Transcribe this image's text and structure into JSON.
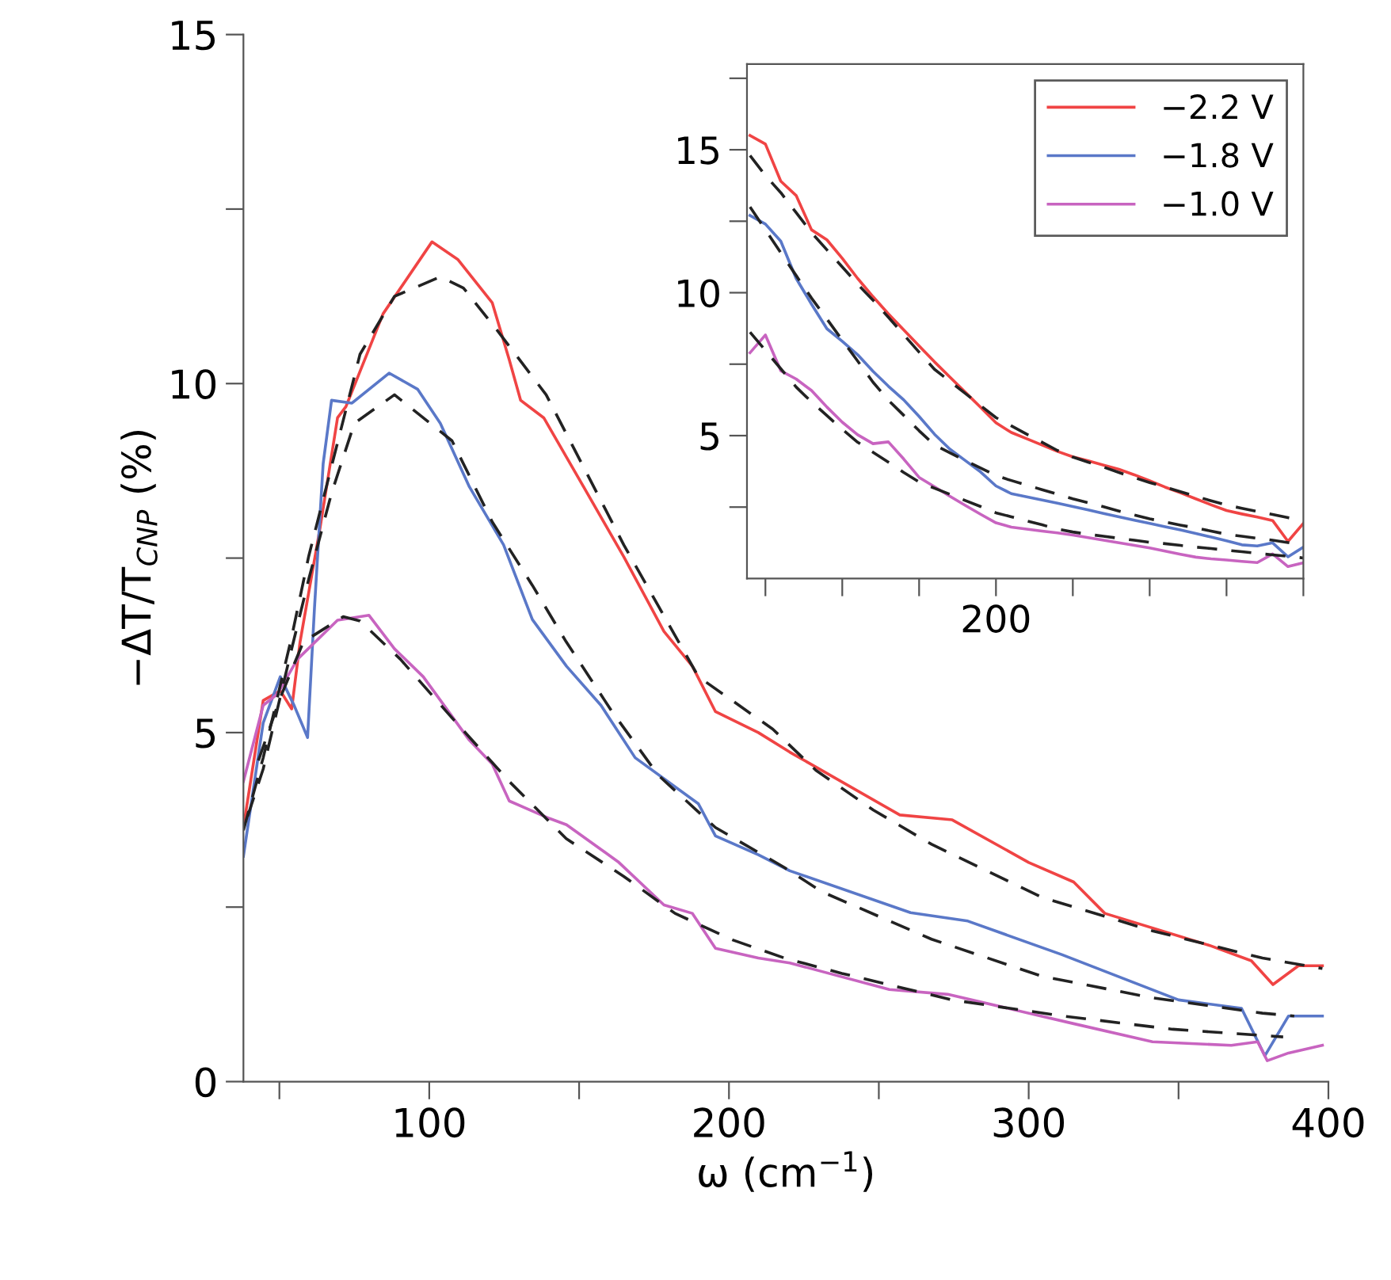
{
  "chart_data": [
    {
      "type": "line",
      "xlabel": "ω (cm$^{−1}$)",
      "ylabel": "−ΔT/T$_{CNP}$ (%)",
      "xlim": [
        38,
        400
      ],
      "ylim": [
        0,
        15
      ],
      "xticks": [
        {
          "value": 50,
          "label": null
        },
        100,
        {
          "value": 150,
          "label": null
        },
        200,
        {
          "value": 250,
          "label": null
        },
        300,
        {
          "value": 350,
          "label": null
        },
        400
      ],
      "yticks": [
        0,
        {
          "value": 2.5,
          "label": null
        },
        5,
        {
          "value": 7.5,
          "label": null
        },
        10,
        {
          "value": 12.5,
          "label": null
        },
        15
      ],
      "grid": false,
      "legend": false,
      "series": [
        {
          "color": "#f04444",
          "line_style": "solid",
          "x": [
            38,
            44.6,
            50.3,
            54.1,
            56.9,
            63.6,
            69.4,
            72.2,
            84.6,
            100.9,
            109.5,
            121,
            126.7,
            130.5,
            138.2,
            151.5,
            164.9,
            178.3,
            187.8,
            195.5,
            209.8,
            220.3,
            257,
            274.5,
            300,
            315,
            325.4,
            360.4,
            374.3,
            381.5,
            390,
            398
          ],
          "values": [
            3.64,
            5.46,
            5.6,
            5.34,
            6.3,
            7.94,
            9.51,
            9.67,
            11.0,
            12.03,
            11.78,
            11.16,
            10.34,
            9.76,
            9.51,
            8.52,
            7.52,
            6.45,
            5.95,
            5.3,
            5.0,
            4.72,
            3.82,
            3.75,
            3.14,
            2.86,
            2.41,
            1.95,
            1.73,
            1.39,
            1.66,
            1.66
          ]
        },
        {
          "color": "#5a78c8",
          "line_style": "solid",
          "x": [
            38,
            44.6,
            50.3,
            55,
            59.4,
            61.7,
            64.6,
            67.4,
            74.2,
            86.6,
            96.1,
            103.7,
            113.4,
            124.8,
            134.4,
            145.8,
            157.3,
            168.7,
            189.8,
            195.5,
            209.8,
            220.3,
            260.6,
            279.7,
            311,
            350,
            371,
            378.8,
            386.7,
            398
          ],
          "values": [
            3.23,
            5.14,
            5.8,
            5.38,
            4.93,
            6.78,
            8.85,
            9.76,
            9.72,
            10.15,
            9.92,
            9.43,
            8.52,
            7.69,
            6.62,
            5.95,
            5.39,
            4.64,
            3.98,
            3.52,
            3.25,
            3.02,
            2.42,
            2.3,
            1.82,
            1.17,
            1.05,
            0.37,
            0.94,
            0.94
          ]
        },
        {
          "color": "#c864c0",
          "line_style": "solid",
          "x": [
            38,
            44.6,
            49.3,
            56,
            69.4,
            79.9,
            88.4,
            98,
            113.4,
            121,
            126.7,
            140.1,
            145.8,
            163,
            178.3,
            187.8,
            195.5,
            209.8,
            220.3,
            253.5,
            273,
            315,
            341.3,
            367.6,
            376.4,
            379.6,
            386.7,
            398
          ],
          "values": [
            4.3,
            5.39,
            5.55,
            6.05,
            6.61,
            6.68,
            6.2,
            5.8,
            4.89,
            4.55,
            4.02,
            3.77,
            3.68,
            3.15,
            2.53,
            2.41,
            1.91,
            1.77,
            1.7,
            1.32,
            1.25,
            0.83,
            0.57,
            0.52,
            0.57,
            0.3,
            0.41,
            0.52
          ]
        },
        {
          "color": "#222222",
          "line_style": "dashed",
          "x": [
            38,
            44.6,
            54.1,
            59.8,
            76.9,
            88.4,
            103.7,
            111.4,
            122.9,
            139,
            164.9,
            189.8,
            214.6,
            229,
            248.2,
            267.6,
            304.4,
            341.3,
            378,
            398
          ],
          "values": [
            3.6,
            4.64,
            6.37,
            7.53,
            10.42,
            11.25,
            11.53,
            11.37,
            10.75,
            9.84,
            7.69,
            5.8,
            5.05,
            4.46,
            3.89,
            3.4,
            2.64,
            2.16,
            1.77,
            1.62
          ]
        },
        {
          "color": "#222222",
          "line_style": "dashed",
          "x": [
            39.4,
            44.6,
            54.1,
            59.8,
            67.4,
            75,
            88.4,
            107.6,
            121,
            134.4,
            145.7,
            161,
            176.4,
            195.5,
            218.4,
            231,
            267.6,
            304.4,
            341.3,
            378,
            388.6
          ],
          "values": [
            3.8,
            4.48,
            6.2,
            7.2,
            8.43,
            9.43,
            9.84,
            9.18,
            8.02,
            7.11,
            6.3,
            5.3,
            4.39,
            3.64,
            3.07,
            2.72,
            2.04,
            1.51,
            1.2,
            0.98,
            0.94
          ]
        },
        {
          "color": "#222222",
          "line_style": "dashed",
          "x": [
            43,
            50.3,
            58,
            71.3,
            76.9,
            90.4,
            107.6,
            126.7,
            145.7,
            164.9,
            182,
            201.2,
            218.5,
            237.7,
            274.5,
            311.3,
            348,
            384.9
          ],
          "values": [
            4.6,
            5.5,
            6.3,
            6.66,
            6.6,
            6.05,
            5.21,
            4.3,
            3.48,
            2.94,
            2.41,
            2.03,
            1.77,
            1.55,
            1.17,
            0.94,
            0.75,
            0.64
          ]
        }
      ]
    },
    {
      "type": "line",
      "ylim": [
        0,
        18
      ],
      "categories": [
        null,
        null,
        null,
        null,
        null,
        null,
        null,
        null,
        null,
        null,
        null,
        null,
        null,
        null,
        null,
        null,
        "200",
        null,
        null,
        null,
        null,
        null,
        null,
        null,
        null,
        null,
        null,
        null,
        null,
        null,
        null,
        null,
        null,
        null,
        null,
        null,
        null
      ],
      "yticks": [
        {
          "value": 2.5,
          "label": null
        },
        5,
        {
          "value": 7.5,
          "label": null
        },
        10,
        {
          "value": 12.5,
          "label": null
        },
        15,
        {
          "value": 17.5,
          "label": null
        }
      ],
      "grid": false,
      "legend": "top right",
      "series": [
        {
          "name": "−2.2 V",
          "color": "#f04444",
          "line_style": "solid",
          "values": [
            15.5,
            15.2,
            13.9,
            13.4,
            12.2,
            11.85,
            11.2,
            10.5,
            9.86,
            9.26,
            8.7,
            8.14,
            7.58,
            7.05,
            6.52,
            5.99,
            5.45,
            5.11,
            4.89,
            4.67,
            4.45,
            4.26,
            4.12,
            3.97,
            3.82,
            3.63,
            3.42,
            3.2,
            3.0,
            2.79,
            2.58,
            2.38,
            2.26,
            2.15,
            2.03,
            1.3,
            1.93
          ]
        },
        {
          "name": "−1.8 V",
          "color": "#5a78c8",
          "line_style": "solid",
          "values": [
            12.7,
            12.4,
            11.8,
            10.5,
            9.6,
            8.74,
            8.3,
            7.83,
            7.25,
            6.73,
            6.25,
            5.67,
            5.05,
            4.53,
            4.13,
            3.73,
            3.24,
            2.97,
            2.86,
            2.75,
            2.64,
            2.52,
            2.4,
            2.28,
            2.16,
            2.04,
            1.93,
            1.81,
            1.7,
            1.58,
            1.45,
            1.32,
            1.18,
            1.14,
            1.25,
            0.76,
            1.1
          ]
        },
        {
          "name": "−1.0 V",
          "color": "#c864c0",
          "line_style": "solid",
          "values": [
            7.9,
            8.52,
            7.27,
            6.98,
            6.58,
            6.0,
            5.47,
            5.03,
            4.72,
            4.78,
            4.18,
            3.54,
            3.21,
            2.88,
            2.56,
            2.25,
            1.95,
            1.8,
            1.73,
            1.66,
            1.6,
            1.52,
            1.43,
            1.34,
            1.25,
            1.16,
            1.07,
            0.96,
            0.85,
            0.75,
            0.69,
            0.65,
            0.6,
            0.56,
            0.86,
            0.42,
            0.55
          ]
        },
        {
          "color": "#222222",
          "line_style": "dashed",
          "values": [
            14.8,
            14.1,
            13.5,
            12.8,
            12.1,
            11.5,
            10.9,
            10.3,
            9.74,
            9.14,
            8.53,
            7.92,
            7.32,
            6.9,
            6.48,
            6.05,
            5.63,
            5.34,
            5.05,
            4.77,
            4.48,
            4.25,
            4.07,
            3.9,
            3.71,
            3.53,
            3.36,
            3.2,
            3.04,
            2.88,
            2.72,
            2.57,
            2.46,
            2.35,
            2.24,
            2.13,
            2.02
          ]
        },
        {
          "color": "#222222",
          "line_style": "dashed",
          "values": [
            13.0,
            12.2,
            11.4,
            10.6,
            9.81,
            9.08,
            8.34,
            7.61,
            6.87,
            6.24,
            5.71,
            5.17,
            4.67,
            4.4,
            4.13,
            3.87,
            3.6,
            3.43,
            3.27,
            3.11,
            2.95,
            2.79,
            2.65,
            2.51,
            2.36,
            2.22,
            2.09,
            1.98,
            1.87,
            1.77,
            1.66,
            1.55,
            1.48,
            1.41,
            1.34,
            1.26,
            1.2
          ]
        },
        {
          "color": "#222222",
          "line_style": "dashed",
          "values": [
            8.62,
            7.98,
            7.34,
            6.7,
            6.18,
            5.7,
            5.22,
            4.77,
            4.42,
            4.07,
            3.71,
            3.38,
            3.16,
            2.95,
            2.73,
            2.52,
            2.3,
            2.16,
            2.02,
            1.88,
            1.73,
            1.63,
            1.55,
            1.48,
            1.41,
            1.34,
            1.27,
            1.22,
            1.16,
            1.1,
            1.05,
            0.99,
            0.94,
            0.88,
            0.83,
            0.78,
            0.72
          ]
        }
      ]
    }
  ]
}
